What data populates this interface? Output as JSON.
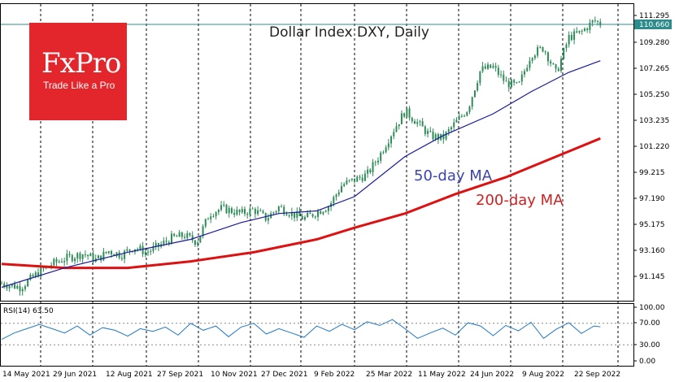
{
  "logo": {
    "name": "FxPro",
    "tagline": "Trade Like a Pro"
  },
  "colors": {
    "candle": "#2e8b57",
    "ma50": "#1a1a9a",
    "ma200": "#dd1111",
    "rsi": "#1e78c8",
    "last_price_line": "#2e8b8b",
    "logo_bg": "#e3262c"
  },
  "main_panel": {
    "title": "Dollar Index DXY, Daily",
    "y_ticks": [
      "111.295",
      "109.280",
      "107.265",
      "105.250",
      "103.235",
      "101.220",
      "99.215",
      "97.190",
      "95.175",
      "93.160",
      "91.145"
    ],
    "last_price": "110.660",
    "ma50_label": "50-day MA",
    "ma200_label": "200-day MA"
  },
  "rsi_panel": {
    "label": "RSI(14) 63.50",
    "y_ticks": [
      "100.00",
      "70.00",
      "30.00",
      "0.00"
    ]
  },
  "x_ticks": [
    "14 May 2021",
    "29 Jun 2021",
    "12 Aug 2021",
    "27 Sep 2021",
    "10 Nov 2021",
    "27 Dec 2021",
    "9 Feb 2022",
    "25 Mar 2022",
    "11 May 2022",
    "24 Jun 2022",
    "9 Aug 2022",
    "22 Sep 2022"
  ],
  "chart_data": {
    "type": "candlestick",
    "title": "Dollar Index DXY, Daily",
    "x_range": [
      "2021-05-14",
      "2022-09-22"
    ],
    "ylim": [
      90.3,
      111.8
    ],
    "price_path": [
      [
        0,
        90.6
      ],
      [
        0.03,
        90.3
      ],
      [
        0.06,
        91.5
      ],
      [
        0.08,
        92.1
      ],
      [
        0.1,
        92.5
      ],
      [
        0.13,
        92.9
      ],
      [
        0.15,
        92.4
      ],
      [
        0.17,
        93.1
      ],
      [
        0.19,
        92.8
      ],
      [
        0.21,
        93.4
      ],
      [
        0.23,
        93.0
      ],
      [
        0.25,
        93.5
      ],
      [
        0.27,
        94.1
      ],
      [
        0.29,
        94.3
      ],
      [
        0.31,
        93.8
      ],
      [
        0.33,
        96.0
      ],
      [
        0.35,
        96.4
      ],
      [
        0.38,
        96.0
      ],
      [
        0.4,
        96.3
      ],
      [
        0.42,
        95.6
      ],
      [
        0.44,
        96.5
      ],
      [
        0.46,
        96.0
      ],
      [
        0.48,
        95.6
      ],
      [
        0.5,
        96.1
      ],
      [
        0.52,
        96.6
      ],
      [
        0.54,
        98.2
      ],
      [
        0.56,
        98.6
      ],
      [
        0.58,
        99.0
      ],
      [
        0.6,
        100.5
      ],
      [
        0.62,
        102.3
      ],
      [
        0.64,
        103.9
      ],
      [
        0.66,
        103.0
      ],
      [
        0.68,
        102.0
      ],
      [
        0.7,
        101.8
      ],
      [
        0.72,
        103.0
      ],
      [
        0.74,
        104.1
      ],
      [
        0.76,
        107.1
      ],
      [
        0.78,
        107.3
      ],
      [
        0.8,
        106.1
      ],
      [
        0.82,
        105.8
      ],
      [
        0.84,
        108.3
      ],
      [
        0.86,
        108.8
      ],
      [
        0.88,
        106.8
      ],
      [
        0.9,
        109.6
      ],
      [
        0.92,
        110.0
      ],
      [
        0.94,
        110.9
      ],
      [
        0.95,
        110.66
      ]
    ],
    "series": [
      {
        "name": "50-day MA",
        "points": [
          [
            0,
            90.3
          ],
          [
            0.1,
            91.8
          ],
          [
            0.2,
            93.0
          ],
          [
            0.3,
            94.0
          ],
          [
            0.38,
            95.3
          ],
          [
            0.44,
            96.0
          ],
          [
            0.5,
            96.2
          ],
          [
            0.56,
            97.3
          ],
          [
            0.64,
            100.4
          ],
          [
            0.7,
            102.0
          ],
          [
            0.78,
            103.7
          ],
          [
            0.84,
            105.4
          ],
          [
            0.9,
            106.9
          ],
          [
            0.95,
            107.8
          ]
        ]
      },
      {
        "name": "200-day MA",
        "points": [
          [
            0,
            92.1
          ],
          [
            0.1,
            91.8
          ],
          [
            0.2,
            91.8
          ],
          [
            0.3,
            92.3
          ],
          [
            0.4,
            93.0
          ],
          [
            0.5,
            94.0
          ],
          [
            0.56,
            94.9
          ],
          [
            0.64,
            96.0
          ],
          [
            0.72,
            97.5
          ],
          [
            0.8,
            98.8
          ],
          [
            0.88,
            100.4
          ],
          [
            0.95,
            101.8
          ]
        ]
      }
    ],
    "rsi": {
      "name": "RSI(14)",
      "last": 63.5,
      "ylim": [
        0,
        100
      ],
      "levels": [
        30,
        70
      ],
      "points": [
        [
          0,
          40
        ],
        [
          0.02,
          52
        ],
        [
          0.04,
          60
        ],
        [
          0.06,
          68
        ],
        [
          0.08,
          60
        ],
        [
          0.1,
          52
        ],
        [
          0.12,
          65
        ],
        [
          0.14,
          48
        ],
        [
          0.16,
          62
        ],
        [
          0.18,
          57
        ],
        [
          0.2,
          46
        ],
        [
          0.22,
          60
        ],
        [
          0.24,
          55
        ],
        [
          0.26,
          63
        ],
        [
          0.28,
          48
        ],
        [
          0.3,
          70
        ],
        [
          0.32,
          57
        ],
        [
          0.34,
          65
        ],
        [
          0.36,
          45
        ],
        [
          0.38,
          63
        ],
        [
          0.4,
          70
        ],
        [
          0.42,
          50
        ],
        [
          0.44,
          60
        ],
        [
          0.46,
          52
        ],
        [
          0.48,
          44
        ],
        [
          0.5,
          65
        ],
        [
          0.52,
          55
        ],
        [
          0.54,
          68
        ],
        [
          0.56,
          58
        ],
        [
          0.58,
          73
        ],
        [
          0.6,
          66
        ],
        [
          0.62,
          77
        ],
        [
          0.64,
          60
        ],
        [
          0.66,
          42
        ],
        [
          0.68,
          52
        ],
        [
          0.7,
          61
        ],
        [
          0.72,
          48
        ],
        [
          0.74,
          71
        ],
        [
          0.76,
          65
        ],
        [
          0.78,
          47
        ],
        [
          0.8,
          66
        ],
        [
          0.82,
          56
        ],
        [
          0.84,
          72
        ],
        [
          0.86,
          42
        ],
        [
          0.88,
          59
        ],
        [
          0.9,
          71
        ],
        [
          0.92,
          51
        ],
        [
          0.94,
          65
        ],
        [
          0.95,
          63.5
        ]
      ]
    }
  }
}
